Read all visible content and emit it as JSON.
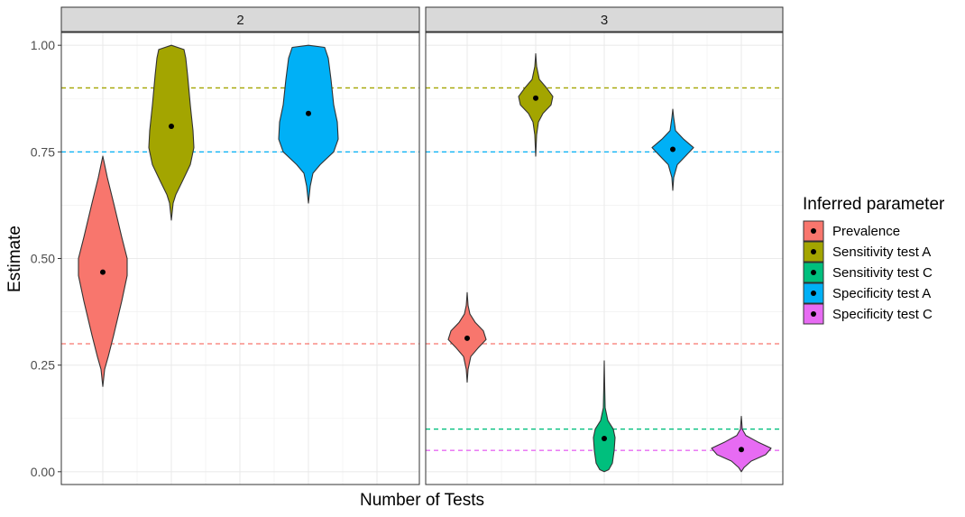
{
  "chart_data": {
    "type": "violin",
    "xlabel": "Number of Tests",
    "ylabel": "Estimate",
    "ylim": [
      -0.03,
      1.03
    ],
    "y_ticks": [
      0.0,
      0.25,
      0.5,
      0.75,
      1.0
    ],
    "y_tick_labels": [
      "0.00",
      "0.25",
      "0.50",
      "0.75",
      "1.00"
    ],
    "grid": true,
    "legend": {
      "title": "Inferred parameter",
      "position": "right",
      "entries": [
        {
          "name": "Prevalence",
          "color": "#F8766D"
        },
        {
          "name": "Sensitivity test A",
          "color": "#A3A500"
        },
        {
          "name": "Sensitivity test C",
          "color": "#00BF7D"
        },
        {
          "name": "Specificity test A",
          "color": "#00B0F6"
        },
        {
          "name": "Specificity test C",
          "color": "#E76BF3"
        }
      ]
    },
    "panels": [
      {
        "label": "2",
        "reference_lines": [
          {
            "series": "Sensitivity test A",
            "y": 0.9
          },
          {
            "series": "Specificity test A",
            "y": 0.75
          },
          {
            "series": "Prevalence",
            "y": 0.3
          }
        ],
        "violins": [
          {
            "series": "Prevalence",
            "slot": 0,
            "point": 0.468,
            "profile": [
              [
                0.2,
                0
              ],
              [
                0.24,
                2
              ],
              [
                0.27,
                6
              ],
              [
                0.32,
                12
              ],
              [
                0.4,
                21
              ],
              [
                0.46,
                27
              ],
              [
                0.5,
                27
              ],
              [
                0.55,
                21
              ],
              [
                0.63,
                12
              ],
              [
                0.69,
                5
              ],
              [
                0.72,
                2
              ],
              [
                0.74,
                0
              ]
            ]
          },
          {
            "series": "Sensitivity test A",
            "slot": 1,
            "point": 0.81,
            "profile": [
              [
                0.59,
                0
              ],
              [
                0.63,
                2
              ],
              [
                0.65,
                5
              ],
              [
                0.68,
                12
              ],
              [
                0.72,
                21
              ],
              [
                0.76,
                25
              ],
              [
                0.8,
                24
              ],
              [
                0.86,
                21
              ],
              [
                0.93,
                18
              ],
              [
                0.97,
                16
              ],
              [
                0.99,
                14
              ],
              [
                1.0,
                0
              ]
            ]
          },
          {
            "series": "Specificity test A",
            "slot": 3,
            "point": 0.84,
            "profile": [
              [
                0.63,
                0
              ],
              [
                0.67,
                2
              ],
              [
                0.7,
                5
              ],
              [
                0.72,
                13
              ],
              [
                0.75,
                28
              ],
              [
                0.78,
                33
              ],
              [
                0.82,
                32
              ],
              [
                0.86,
                28
              ],
              [
                0.92,
                25
              ],
              [
                0.97,
                22
              ],
              [
                0.995,
                18
              ],
              [
                1.0,
                0
              ]
            ]
          }
        ]
      },
      {
        "label": "3",
        "reference_lines": [
          {
            "series": "Sensitivity test A",
            "y": 0.9
          },
          {
            "series": "Specificity test A",
            "y": 0.75
          },
          {
            "series": "Prevalence",
            "y": 0.3
          },
          {
            "series": "Sensitivity test C",
            "y": 0.1
          },
          {
            "series": "Specificity test C",
            "y": 0.05
          }
        ],
        "violins": [
          {
            "series": "Prevalence",
            "slot": 0,
            "point": 0.313,
            "profile": [
              [
                0.21,
                0
              ],
              [
                0.24,
                1
              ],
              [
                0.27,
                4
              ],
              [
                0.29,
                12
              ],
              [
                0.31,
                21
              ],
              [
                0.33,
                18
              ],
              [
                0.35,
                9
              ],
              [
                0.37,
                3
              ],
              [
                0.39,
                1
              ],
              [
                0.42,
                0
              ]
            ]
          },
          {
            "series": "Sensitivity test A",
            "slot": 1,
            "point": 0.876,
            "profile": [
              [
                0.74,
                0
              ],
              [
                0.79,
                1
              ],
              [
                0.82,
                3
              ],
              [
                0.84,
                8
              ],
              [
                0.86,
                17
              ],
              [
                0.88,
                19
              ],
              [
                0.9,
                12
              ],
              [
                0.92,
                4
              ],
              [
                0.95,
                1
              ],
              [
                0.98,
                0
              ]
            ]
          },
          {
            "series": "Sensitivity test C",
            "slot": 2,
            "point": 0.078,
            "profile": [
              [
                0.0,
                0
              ],
              [
                0.005,
                5
              ],
              [
                0.02,
                9
              ],
              [
                0.05,
                11
              ],
              [
                0.08,
                12
              ],
              [
                0.1,
                10
              ],
              [
                0.12,
                4
              ],
              [
                0.15,
                1
              ],
              [
                0.2,
                0.5
              ],
              [
                0.26,
                0
              ]
            ]
          },
          {
            "series": "Specificity test A",
            "slot": 3,
            "point": 0.756,
            "profile": [
              [
                0.66,
                0
              ],
              [
                0.69,
                1
              ],
              [
                0.72,
                5
              ],
              [
                0.74,
                14
              ],
              [
                0.76,
                23
              ],
              [
                0.78,
                12
              ],
              [
                0.8,
                3
              ],
              [
                0.83,
                1
              ],
              [
                0.85,
                0
              ]
            ]
          },
          {
            "series": "Specificity test C",
            "slot": 4,
            "point": 0.052,
            "profile": [
              [
                0.0,
                0
              ],
              [
                0.01,
                3
              ],
              [
                0.025,
                11
              ],
              [
                0.04,
                27
              ],
              [
                0.055,
                33
              ],
              [
                0.07,
                18
              ],
              [
                0.085,
                5
              ],
              [
                0.1,
                1
              ],
              [
                0.13,
                0
              ]
            ]
          }
        ]
      }
    ]
  }
}
